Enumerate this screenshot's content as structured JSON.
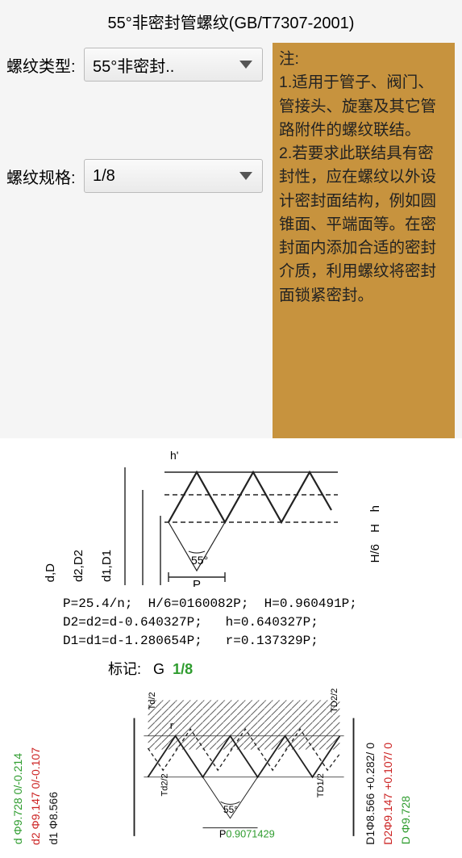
{
  "header": {
    "title": "55°非密封管螺纹(GB/T7307-2001)"
  },
  "form": {
    "type_label": "螺纹类型:",
    "type_value": "55°非密封..",
    "spec_label": "螺纹规格:",
    "spec_value": "1/8"
  },
  "notes": {
    "heading": "注:",
    "line1": "1.适用于管子、阀门、管接头、旋塞及其它管路附件的螺纹联结。",
    "line2": "2.若要求此联结具有密封性，应在螺纹以外设计密封面结构，例如圆锥面、平端面等。在密封面内添加合适的密封介质，利用螺纹将密封面锁紧密封。"
  },
  "dia1": {
    "left_labels": {
      "a": "d,D",
      "b": "d2,D2",
      "c": "d1,D1"
    },
    "right_labels": {
      "h": "h",
      "H": "H",
      "H6": "H/6"
    },
    "top_h": "h'",
    "angle": "55°",
    "P": "P",
    "stroke": "#222"
  },
  "formulas": {
    "l1a": "P=25.4/n;",
    "l1b": "H/6=0160082P;",
    "l1c": "H=0.960491P;",
    "l2a": "D2=d2=d-0.640327P;",
    "l2b": "h=0.640327P;",
    "l3a": "D1=d1=d-1.280654P;",
    "l3b": "r=0.137329P;"
  },
  "marking": {
    "label": "标记:",
    "G": "G",
    "val": "1/8"
  },
  "dia2": {
    "left_outer": [
      "Td/2"
    ],
    "left_inner": [
      "Td2/2"
    ],
    "right_outer": [
      "TD2/2"
    ],
    "right_inner": [
      "TD1/2"
    ],
    "angle": "55°",
    "r": "r",
    "P": "P",
    "P_val": "0.9071429",
    "left_dims": [
      {
        "pfx": "d",
        "n": " Φ9.728",
        "tol": " 0\n-0.214",
        "cls": "c-green"
      },
      {
        "pfx": "d2",
        "n": " Φ9.147",
        "tol": " 0\n-0.107",
        "cls": "c-red"
      },
      {
        "pfx": "d1",
        "n": " Φ8.566",
        "tol": "",
        "cls": "c-black"
      }
    ],
    "right_dims": [
      {
        "pfx": "D1",
        "n": "Φ8.566",
        "tol": " +0.282\n 0",
        "cls": "c-black"
      },
      {
        "pfx": "D2",
        "n": "Φ9.147",
        "tol": " +0.107\n 0",
        "cls": "c-red"
      },
      {
        "pfx": "D",
        "n": " Φ9.728",
        "tol": "",
        "cls": "c-green"
      }
    ],
    "stroke": "#222"
  }
}
